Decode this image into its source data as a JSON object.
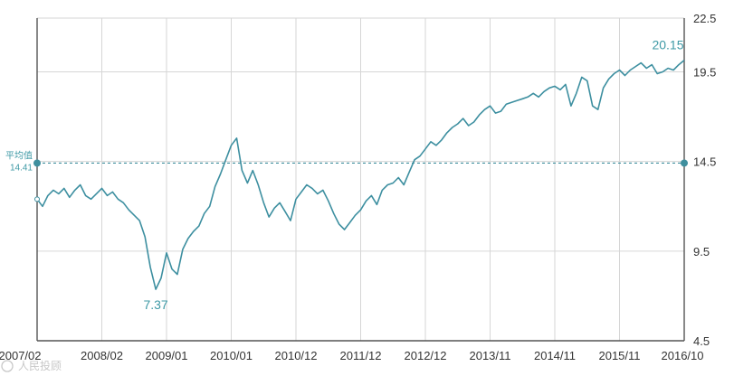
{
  "chart_data": {
    "type": "line",
    "x_tick_labels": [
      "2007/02",
      "2008/02",
      "2009/01",
      "2010/01",
      "2010/12",
      "2011/12",
      "2012/12",
      "2013/11",
      "2014/11",
      "2015/11",
      "2016/10"
    ],
    "y_ticks": [
      4.5,
      9.5,
      14.5,
      19.5,
      22.5
    ],
    "y_tick_labels": [
      "4.5",
      "9.5",
      "14.5",
      "19.5",
      "22.5"
    ],
    "ylim": [
      4.5,
      22.5
    ],
    "xlim": [
      0,
      120
    ],
    "y_axis_position": "right",
    "grid": true,
    "series": [
      {
        "color": "#3d8fa0",
        "x": [
          0,
          1,
          2,
          3,
          4,
          5,
          6,
          7,
          8,
          9,
          10,
          11,
          12,
          13,
          14,
          15,
          16,
          17,
          18,
          19,
          20,
          21,
          22,
          23,
          24,
          25,
          26,
          27,
          28,
          29,
          30,
          31,
          32,
          33,
          34,
          35,
          36,
          37,
          38,
          39,
          40,
          41,
          42,
          43,
          44,
          45,
          46,
          47,
          48,
          49,
          50,
          51,
          52,
          53,
          54,
          55,
          56,
          57,
          58,
          59,
          60,
          61,
          62,
          63,
          64,
          65,
          66,
          67,
          68,
          69,
          70,
          71,
          72,
          73,
          74,
          75,
          76,
          77,
          78,
          79,
          80,
          81,
          82,
          83,
          84,
          85,
          86,
          87,
          88,
          89,
          90,
          91,
          92,
          93,
          94,
          95,
          96,
          97,
          98,
          99,
          100,
          101,
          102,
          103,
          104,
          105,
          106,
          107,
          108,
          109,
          110,
          111,
          112,
          113,
          114,
          115,
          116,
          117,
          118,
          119,
          120
        ],
        "values": [
          12.4,
          12.0,
          12.6,
          12.9,
          12.7,
          13.0,
          12.5,
          12.9,
          13.2,
          12.6,
          12.4,
          12.7,
          13.0,
          12.6,
          12.8,
          12.4,
          12.2,
          11.8,
          11.5,
          11.2,
          10.3,
          8.6,
          7.37,
          8.0,
          9.4,
          8.5,
          8.2,
          9.6,
          10.2,
          10.6,
          10.9,
          11.6,
          12.0,
          13.1,
          13.8,
          14.6,
          15.4,
          15.8,
          14.0,
          13.3,
          14.0,
          13.2,
          12.2,
          11.4,
          11.9,
          12.2,
          11.7,
          11.2,
          12.4,
          12.8,
          13.2,
          13.0,
          12.7,
          12.9,
          12.3,
          11.6,
          11.0,
          10.7,
          11.1,
          11.5,
          11.8,
          12.3,
          12.6,
          12.1,
          12.9,
          13.2,
          13.3,
          13.6,
          13.2,
          13.9,
          14.6,
          14.8,
          15.2,
          15.6,
          15.4,
          15.7,
          16.1,
          16.4,
          16.6,
          16.9,
          16.5,
          16.7,
          17.1,
          17.4,
          17.6,
          17.2,
          17.3,
          17.7,
          17.8,
          17.9,
          18.0,
          18.1,
          18.3,
          18.1,
          18.4,
          18.6,
          18.7,
          18.5,
          18.8,
          17.6,
          18.3,
          19.2,
          19.0,
          17.6,
          17.4,
          18.6,
          19.1,
          19.4,
          19.6,
          19.3,
          19.6,
          19.8,
          20.0,
          19.7,
          19.9,
          19.4,
          19.5,
          19.7,
          19.6,
          19.9,
          20.15
        ]
      }
    ],
    "average": {
      "label": "平均值",
      "value": "14.41",
      "y": 14.41
    },
    "annotations": {
      "min": {
        "label": "7.37",
        "x": 22,
        "y": 7.37
      },
      "max": {
        "label": "20.15",
        "x": 120,
        "y": 20.15
      }
    }
  },
  "watermark": "人民投顾"
}
